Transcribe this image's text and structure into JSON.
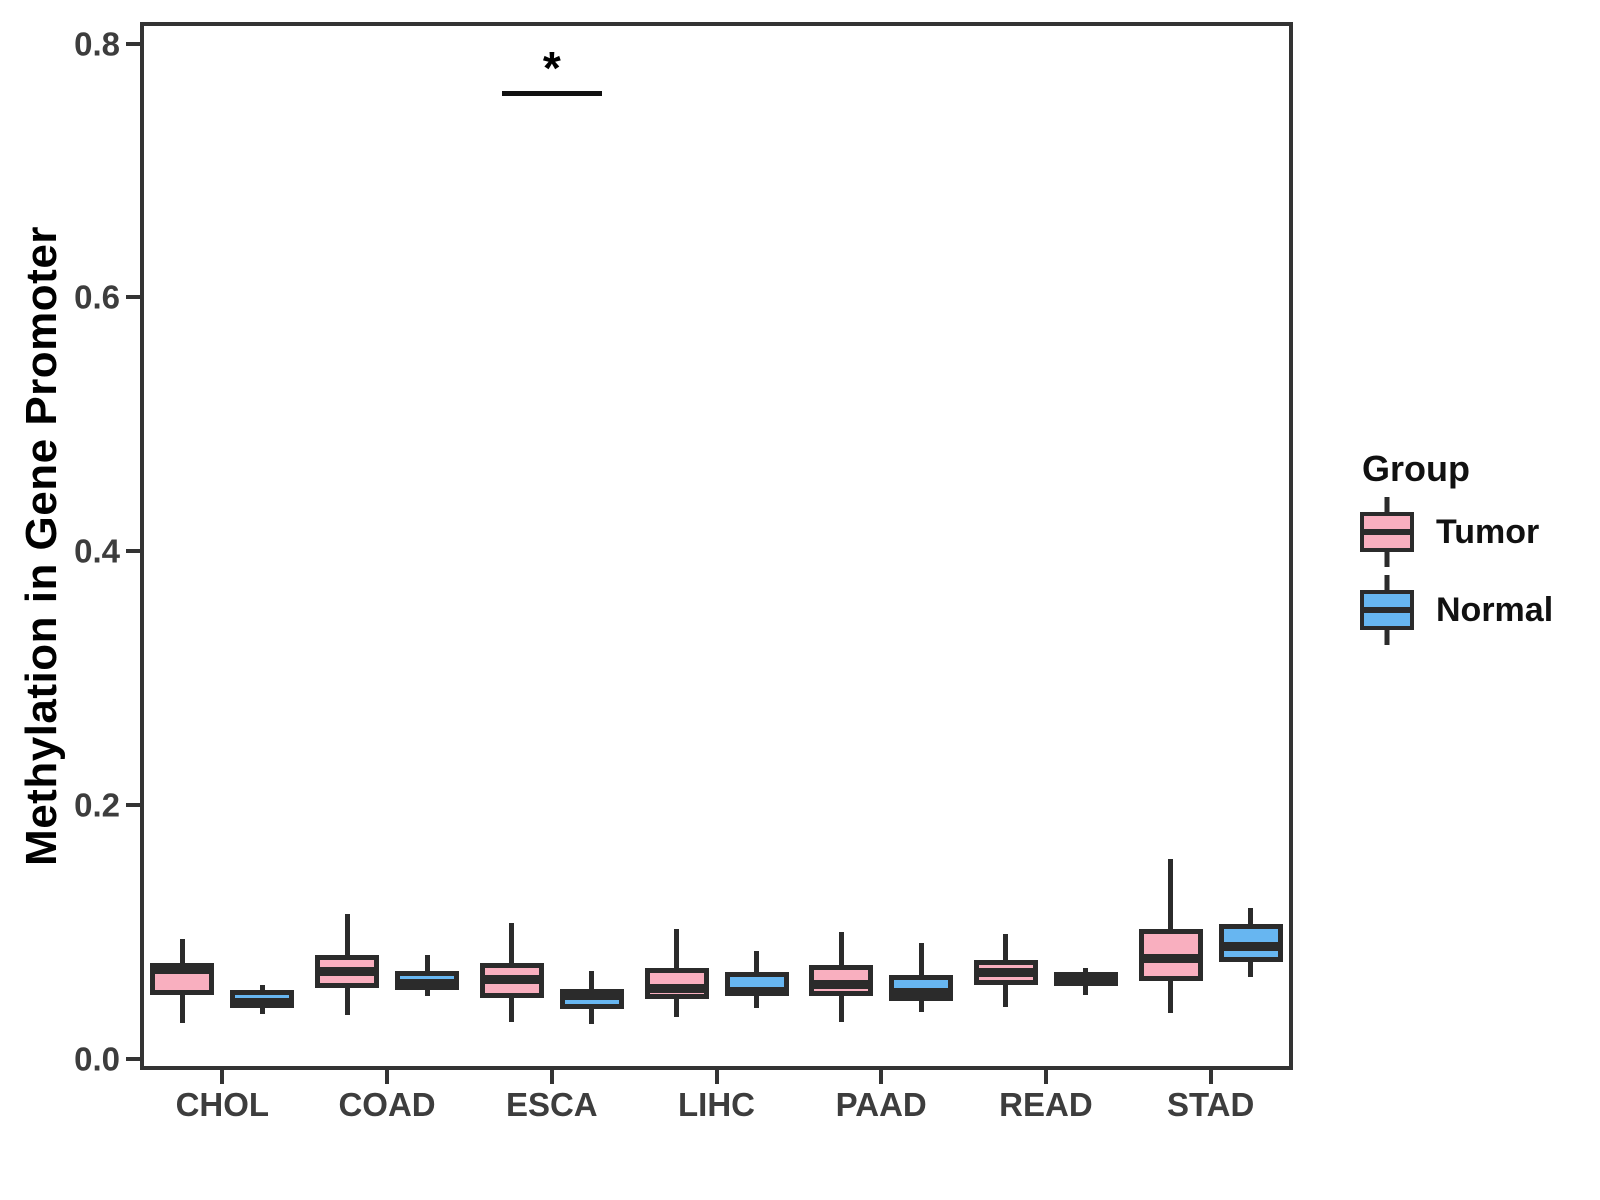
{
  "chart_data": {
    "type": "grouped_boxplot",
    "title": "",
    "xlabel": "",
    "ylabel": "Methylation in Gene Promoter",
    "categories": [
      "CHOL",
      "COAD",
      "ESCA",
      "LIHC",
      "PAAD",
      "READ",
      "STAD"
    ],
    "yticks": [
      "0.0",
      "0.2",
      "0.4",
      "0.6",
      "0.8"
    ],
    "ytick_values": [
      0.0,
      0.2,
      0.4,
      0.6,
      0.8
    ],
    "ylim": [
      -0.009,
      0.817
    ],
    "grid": false,
    "series": [
      {
        "name": "Tumor",
        "color": "#F9AFBF",
        "boxes": [
          {
            "category": "CHOL",
            "whisker_low": 0.028,
            "q1": 0.05,
            "median": 0.07,
            "q3": 0.075,
            "whisker_high": 0.094
          },
          {
            "category": "COAD",
            "whisker_low": 0.034,
            "q1": 0.056,
            "median": 0.069,
            "q3": 0.082,
            "whisker_high": 0.114
          },
          {
            "category": "ESCA",
            "whisker_low": 0.029,
            "q1": 0.048,
            "median": 0.062,
            "q3": 0.075,
            "whisker_high": 0.107
          },
          {
            "category": "LIHC",
            "whisker_low": 0.033,
            "q1": 0.047,
            "median": 0.055,
            "q3": 0.071,
            "whisker_high": 0.102
          },
          {
            "category": "PAAD",
            "whisker_low": 0.029,
            "q1": 0.049,
            "median": 0.058,
            "q3": 0.074,
            "whisker_high": 0.1
          },
          {
            "category": "READ",
            "whisker_low": 0.041,
            "q1": 0.058,
            "median": 0.068,
            "q3": 0.078,
            "whisker_high": 0.098
          },
          {
            "category": "STAD",
            "whisker_low": 0.036,
            "q1": 0.061,
            "median": 0.079,
            "q3": 0.102,
            "whisker_high": 0.157
          }
        ]
      },
      {
        "name": "Normal",
        "color": "#67B6F1",
        "boxes": [
          {
            "category": "CHOL",
            "whisker_low": 0.035,
            "q1": 0.04,
            "median": 0.044,
            "q3": 0.054,
            "whisker_high": 0.058
          },
          {
            "category": "COAD",
            "whisker_low": 0.049,
            "q1": 0.054,
            "median": 0.059,
            "q3": 0.069,
            "whisker_high": 0.082
          },
          {
            "category": "ESCA",
            "whisker_low": 0.027,
            "q1": 0.039,
            "median": 0.05,
            "q3": 0.055,
            "whisker_high": 0.069
          },
          {
            "category": "LIHC",
            "whisker_low": 0.04,
            "q1": 0.049,
            "median": 0.053,
            "q3": 0.068,
            "whisker_high": 0.085
          },
          {
            "category": "PAAD",
            "whisker_low": 0.037,
            "q1": 0.045,
            "median": 0.052,
            "q3": 0.066,
            "whisker_high": 0.091
          },
          {
            "category": "READ",
            "whisker_low": 0.05,
            "q1": 0.057,
            "median": 0.062,
            "q3": 0.068,
            "whisker_high": 0.071
          },
          {
            "category": "STAD",
            "whisker_low": 0.064,
            "q1": 0.076,
            "median": 0.088,
            "q3": 0.106,
            "whisker_high": 0.119
          }
        ]
      }
    ],
    "significance": {
      "category": "ESCA",
      "between": [
        "Tumor",
        "Normal"
      ],
      "label": "*",
      "bar_y": 0.761
    },
    "legend": {
      "title": "Group",
      "position": "right",
      "entries": [
        {
          "label": "Tumor",
          "color": "#F9AFBF"
        },
        {
          "label": "Normal",
          "color": "#67B6F1"
        }
      ]
    }
  }
}
